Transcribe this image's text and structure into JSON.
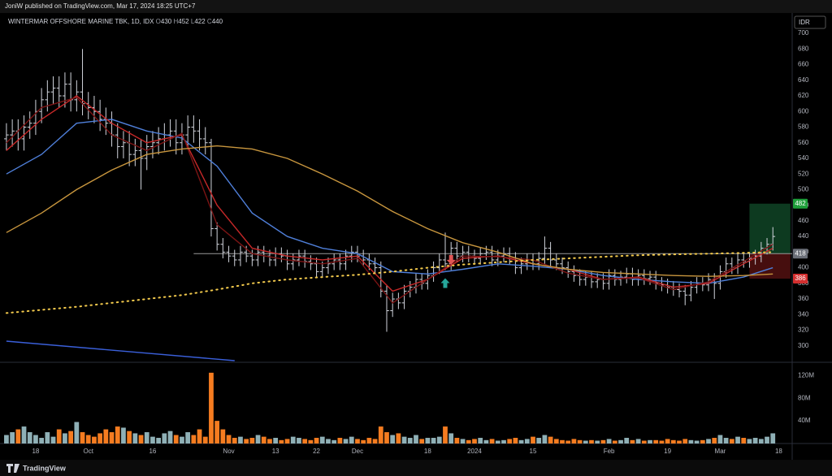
{
  "header": {
    "published": "JoniW published on TradingView.com, Mar 17, 2024 18:25 UTC+7",
    "currency": "IDR"
  },
  "footer": {
    "brand": "TradingView"
  },
  "chart_data": {
    "type": "ohlc",
    "legend": {
      "symbol": "WINTERMAR OFFSHORE MARINE TBK, 1D, IDX",
      "ohlc": [
        {
          "key": "O",
          "value": 430
        },
        {
          "key": "H",
          "value": 452
        },
        {
          "key": "L",
          "value": 422
        },
        {
          "key": "C",
          "value": 440
        }
      ]
    },
    "categories": [
      null,
      null,
      null,
      null,
      null,
      "18",
      null,
      null,
      null,
      null,
      null,
      null,
      null,
      null,
      "Oct",
      null,
      null,
      null,
      null,
      null,
      null,
      null,
      null,
      null,
      null,
      "16",
      null,
      null,
      null,
      null,
      null,
      null,
      null,
      null,
      null,
      null,
      null,
      null,
      "Nov",
      null,
      null,
      null,
      null,
      null,
      null,
      null,
      "13",
      null,
      null,
      null,
      null,
      null,
      null,
      "22",
      null,
      null,
      null,
      null,
      null,
      null,
      "Dec",
      null,
      null,
      null,
      null,
      null,
      null,
      null,
      null,
      null,
      null,
      null,
      "18",
      null,
      null,
      null,
      null,
      null,
      null,
      null,
      "2024",
      null,
      null,
      null,
      null,
      null,
      null,
      null,
      null,
      null,
      "15",
      null,
      null,
      null,
      null,
      null,
      null,
      null,
      null,
      null,
      null,
      null,
      null,
      "Feb",
      null,
      null,
      null,
      null,
      null,
      null,
      null,
      null,
      null,
      "19",
      null,
      null,
      null,
      null,
      null,
      null,
      null,
      null,
      "Mar",
      null,
      null,
      null,
      null,
      null,
      null,
      null,
      null,
      null,
      "18"
    ],
    "open": [
      565,
      570,
      575,
      565,
      580,
      585,
      600,
      615,
      625,
      630,
      620,
      635,
      615,
      625,
      610,
      605,
      600,
      590,
      585,
      570,
      555,
      560,
      545,
      550,
      540,
      555,
      560,
      565,
      570,
      575,
      560,
      570,
      580,
      575,
      565,
      560,
      450,
      430,
      420,
      415,
      410,
      420,
      415,
      410,
      420,
      415,
      410,
      418,
      415,
      405,
      410,
      415,
      408,
      405,
      395,
      400,
      405,
      410,
      405,
      415,
      420,
      415,
      410,
      405,
      400,
      370,
      345,
      360,
      355,
      370,
      375,
      385,
      380,
      390,
      400,
      410,
      405,
      425,
      415,
      420,
      415,
      412,
      418,
      420,
      410,
      415,
      418,
      412,
      400,
      405,
      410,
      405,
      412,
      425,
      410,
      405,
      400,
      395,
      390,
      385,
      388,
      382,
      385,
      380,
      390,
      385,
      388,
      392,
      385,
      390,
      386,
      388,
      380,
      378,
      375,
      372,
      370,
      365,
      375,
      380,
      378,
      385,
      380,
      395,
      405,
      400,
      410,
      408,
      412,
      415,
      425,
      430,
      null
    ],
    "high": [
      585,
      590,
      590,
      595,
      600,
      615,
      630,
      640,
      645,
      645,
      650,
      650,
      640,
      680,
      625,
      620,
      615,
      605,
      600,
      585,
      575,
      575,
      565,
      565,
      570,
      575,
      580,
      585,
      590,
      590,
      585,
      595,
      595,
      590,
      580,
      565,
      458,
      438,
      428,
      423,
      428,
      428,
      423,
      428,
      428,
      423,
      426,
      426,
      423,
      418,
      423,
      423,
      416,
      413,
      408,
      413,
      418,
      418,
      423,
      428,
      428,
      423,
      418,
      413,
      408,
      378,
      368,
      368,
      378,
      383,
      393,
      393,
      398,
      408,
      418,
      445,
      433,
      433,
      428,
      428,
      423,
      426,
      428,
      428,
      423,
      426,
      426,
      420,
      413,
      418,
      418,
      420,
      440,
      433,
      418,
      413,
      408,
      403,
      398,
      396,
      396,
      393,
      393,
      398,
      398,
      396,
      400,
      400,
      398,
      398,
      396,
      396,
      388,
      386,
      383,
      380,
      378,
      383,
      388,
      388,
      393,
      393,
      403,
      413,
      413,
      418,
      418,
      420,
      423,
      433,
      438,
      452,
      null
    ],
    "low": [
      550,
      555,
      550,
      550,
      565,
      570,
      585,
      600,
      610,
      605,
      605,
      600,
      600,
      595,
      590,
      585,
      575,
      570,
      555,
      540,
      540,
      530,
      530,
      500,
      525,
      540,
      545,
      550,
      555,
      545,
      545,
      555,
      560,
      550,
      545,
      440,
      422,
      412,
      407,
      402,
      402,
      407,
      402,
      402,
      407,
      402,
      402,
      407,
      397,
      397,
      402,
      400,
      397,
      387,
      387,
      392,
      397,
      397,
      397,
      407,
      407,
      402,
      397,
      392,
      362,
      318,
      337,
      347,
      347,
      362,
      367,
      372,
      372,
      382,
      392,
      397,
      397,
      407,
      407,
      407,
      404,
      404,
      410,
      402,
      402,
      407,
      404,
      392,
      392,
      397,
      397,
      397,
      404,
      402,
      397,
      392,
      387,
      382,
      377,
      377,
      374,
      374,
      372,
      372,
      377,
      377,
      380,
      377,
      377,
      378,
      378,
      372,
      370,
      367,
      364,
      362,
      352,
      357,
      367,
      370,
      370,
      360,
      372,
      387,
      392,
      392,
      400,
      400,
      404,
      407,
      417,
      422,
      null
    ],
    "close": [
      570,
      575,
      565,
      580,
      585,
      600,
      615,
      625,
      630,
      620,
      635,
      615,
      625,
      610,
      605,
      600,
      590,
      585,
      570,
      555,
      560,
      545,
      550,
      540,
      555,
      560,
      565,
      570,
      575,
      560,
      570,
      580,
      575,
      565,
      560,
      450,
      430,
      420,
      415,
      410,
      420,
      415,
      410,
      420,
      415,
      410,
      418,
      415,
      405,
      410,
      415,
      408,
      405,
      395,
      400,
      405,
      410,
      405,
      415,
      420,
      415,
      410,
      405,
      400,
      370,
      345,
      360,
      355,
      370,
      375,
      385,
      380,
      390,
      400,
      410,
      405,
      425,
      415,
      420,
      415,
      412,
      418,
      420,
      410,
      415,
      418,
      412,
      400,
      405,
      410,
      405,
      412,
      425,
      410,
      405,
      400,
      395,
      390,
      385,
      388,
      382,
      385,
      380,
      390,
      385,
      388,
      392,
      385,
      390,
      386,
      388,
      380,
      378,
      375,
      372,
      370,
      365,
      375,
      380,
      378,
      385,
      380,
      395,
      405,
      400,
      410,
      408,
      412,
      415,
      425,
      430,
      440,
      null
    ],
    "bar_color": "#d1d4dc",
    "volume": [
      15,
      20,
      25,
      30,
      20,
      15,
      10,
      20,
      12,
      25,
      18,
      22,
      38,
      20,
      15,
      12,
      18,
      25,
      20,
      30,
      28,
      22,
      18,
      15,
      20,
      12,
      10,
      18,
      22,
      15,
      12,
      20,
      15,
      25,
      12,
      125,
      40,
      25,
      15,
      10,
      12,
      8,
      10,
      15,
      12,
      8,
      10,
      6,
      8,
      12,
      10,
      8,
      6,
      10,
      12,
      8,
      6,
      10,
      8,
      12,
      8,
      6,
      10,
      8,
      30,
      20,
      15,
      18,
      12,
      10,
      15,
      8,
      10,
      10,
      12,
      30,
      18,
      10,
      8,
      6,
      8,
      10,
      6,
      8,
      5,
      6,
      8,
      10,
      6,
      8,
      12,
      10,
      15,
      12,
      8,
      6,
      5,
      8,
      6,
      5,
      6,
      5,
      6,
      8,
      5,
      6,
      10,
      6,
      8,
      5,
      6,
      6,
      5,
      8,
      6,
      5,
      8,
      6,
      5,
      6,
      8,
      10,
      15,
      10,
      8,
      12,
      10,
      8,
      10,
      8,
      12,
      18,
      null
    ],
    "volume_up_color": "#8fb0b6",
    "volume_down_color": "#f57c20",
    "xlim": [
      -1.1,
      134.3
    ],
    "ylim": [
      280,
      724
    ],
    "yticks": [
      700,
      680,
      660,
      640,
      620,
      600,
      580,
      560,
      540,
      520,
      500,
      480,
      460,
      440,
      420,
      400,
      380,
      360,
      340,
      320,
      300
    ],
    "vlim": [
      0,
      142
    ],
    "vticks": [
      {
        "value": 40,
        "label": "40M"
      },
      {
        "value": 80,
        "label": "80M"
      },
      {
        "value": 120,
        "label": "120M"
      }
    ],
    "grid": false,
    "lines": [
      {
        "color": "#4f7fd9",
        "x": [
          0,
          6,
          12,
          18,
          24,
          30,
          36,
          42,
          48,
          54,
          60,
          66,
          72,
          78,
          84,
          90,
          96,
          102,
          108,
          114,
          120,
          126,
          131
        ],
        "values": [
          520,
          545,
          585,
          590,
          575,
          566,
          530,
          470,
          440,
          425,
          418,
          395,
          392,
          398,
          405,
          402,
          398,
          390,
          385,
          382,
          380,
          388,
          400
        ]
      },
      {
        "color": "#c62828",
        "x": [
          0,
          6,
          12,
          18,
          24,
          30,
          36,
          42,
          48,
          54,
          60,
          66,
          72,
          78,
          84,
          90,
          96,
          102,
          108,
          114,
          120,
          126,
          131
        ],
        "values": [
          550,
          590,
          620,
          585,
          560,
          570,
          480,
          425,
          415,
          410,
          415,
          370,
          385,
          412,
          415,
          405,
          398,
          385,
          388,
          375,
          380,
          405,
          425
        ]
      },
      {
        "color": "#7a1414",
        "x": [
          0,
          6,
          12,
          18,
          24,
          30,
          36,
          42,
          48,
          54,
          60,
          66,
          72,
          78,
          84,
          90,
          96,
          102,
          108,
          114,
          120,
          126,
          131
        ],
        "values": [
          560,
          605,
          618,
          570,
          550,
          572,
          455,
          418,
          410,
          405,
          412,
          355,
          385,
          415,
          414,
          410,
          393,
          385,
          387,
          372,
          382,
          408,
          430
        ]
      },
      {
        "color": "#c8963e",
        "x": [
          0,
          6,
          12,
          18,
          24,
          30,
          36,
          42,
          48,
          54,
          60,
          66,
          72,
          78,
          84,
          90,
          96,
          102,
          108,
          114,
          120,
          126,
          131
        ],
        "values": [
          445,
          470,
          500,
          525,
          545,
          552,
          556,
          552,
          540,
          520,
          498,
          472,
          450,
          432,
          420,
          405,
          398,
          394,
          392,
          390,
          389,
          390,
          392
        ]
      },
      {
        "color": "#f2c94c",
        "dotted": true,
        "x": [
          0,
          6,
          12,
          18,
          24,
          30,
          36,
          42,
          48,
          54,
          60,
          66,
          72,
          78,
          84,
          90,
          96,
          102,
          108,
          114,
          120,
          126,
          131
        ],
        "values": [
          342,
          346,
          350,
          355,
          360,
          365,
          372,
          380,
          385,
          388,
          391,
          395,
          400,
          404,
          407,
          410,
          412,
          414,
          416,
          417,
          418,
          419,
          420
        ]
      },
      {
        "color": "#3a5fd9",
        "x": [
          0,
          39
        ],
        "values": [
          306,
          281
        ]
      }
    ],
    "level": {
      "value": 418,
      "start": 32,
      "color": "#9a9a9a"
    },
    "position": {
      "target": 482,
      "entry": 418,
      "stop": 386,
      "start": 127,
      "end": 134
    },
    "signals": [
      {
        "index": 76,
        "kind": "sell",
        "color": "#e05555"
      },
      {
        "index": 75,
        "kind": "buy",
        "color": "#26a69a"
      }
    ]
  }
}
